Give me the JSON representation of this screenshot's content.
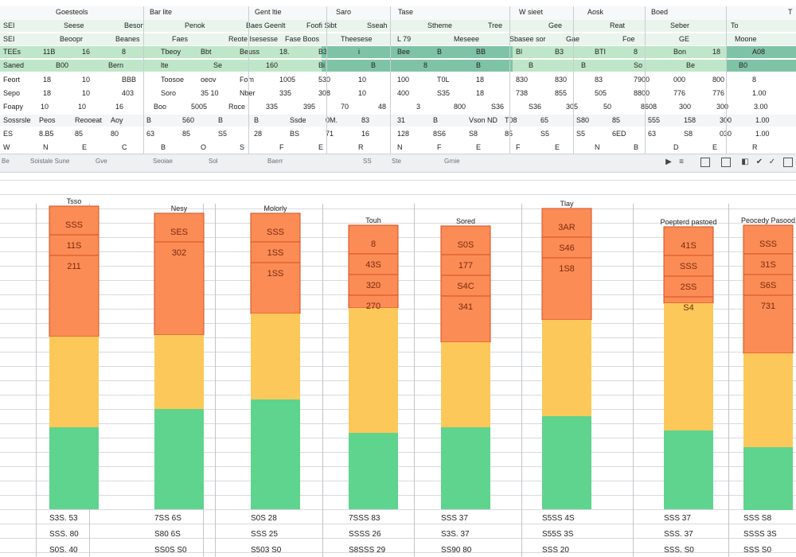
{
  "ribbon": {
    "header": [
      {
        "t": "Goesteols"
      },
      {
        "t": "Bar lite"
      },
      {
        "t": "Gent ltie"
      },
      {
        "t": "Saro"
      },
      {
        "t": "Tase"
      },
      {
        "t": "W sieet"
      },
      {
        "t": "Aosk"
      },
      {
        "t": "Boed"
      },
      {
        "t": "T"
      }
    ],
    "rows": [
      [
        {
          "t": "SEI"
        },
        {
          "t": "Seese"
        },
        {
          "t": "Beson"
        },
        {
          "t": "Penok"
        },
        {
          "t": "Baes Geenlt"
        },
        {
          "t": "Foofi Sibt"
        },
        {
          "t": "Sseah"
        },
        {
          "t": "Stheme"
        },
        {
          "t": "Tree"
        },
        {
          "t": "Gee"
        },
        {
          "t": "Reat"
        },
        {
          "t": "Seber"
        },
        {
          "t": "To"
        }
      ],
      [
        {
          "t": "SEI"
        },
        {
          "t": "Beoopr"
        },
        {
          "t": "Beanes"
        },
        {
          "t": "Faes"
        },
        {
          "t": "Reote Isesesse"
        },
        {
          "t": "Fase Boos"
        },
        {
          "t": "Theesese"
        },
        {
          "t": "L 79"
        },
        {
          "t": "Meseee"
        },
        {
          "t": "Sbasee sor"
        },
        {
          "t": "Gae"
        },
        {
          "t": "Foe"
        },
        {
          "t": "GE"
        },
        {
          "t": "Moone"
        }
      ],
      [
        {
          "t": "TEEs"
        },
        {
          "t": "11B"
        },
        {
          "t": "16"
        },
        {
          "t": "8"
        },
        {
          "t": "Tbeoy"
        },
        {
          "t": "Bbt"
        },
        {
          "t": "Beuss"
        },
        {
          "t": "18."
        },
        {
          "t": "B3"
        },
        {
          "t": "i"
        },
        {
          "t": "Bee"
        },
        {
          "t": "B"
        },
        {
          "t": "BB"
        },
        {
          "t": "Bl"
        },
        {
          "t": "B3"
        },
        {
          "t": "BTI"
        },
        {
          "t": "8"
        },
        {
          "t": "Bon"
        },
        {
          "t": "18"
        },
        {
          "t": "A08"
        }
      ],
      [
        {
          "t": "Saned"
        },
        {
          "t": "B00"
        },
        {
          "t": "Bern"
        },
        {
          "t": "lte"
        },
        {
          "t": "Se"
        },
        {
          "t": "160"
        },
        {
          "t": "Bi"
        },
        {
          "t": "B"
        },
        {
          "t": "8"
        },
        {
          "t": "B"
        },
        {
          "t": "B"
        },
        {
          "t": "B"
        },
        {
          "t": "So"
        },
        {
          "t": "Be"
        },
        {
          "t": "B0"
        }
      ],
      [
        {
          "t": "Feort"
        },
        {
          "t": "18"
        },
        {
          "t": "10"
        },
        {
          "t": "BBB"
        },
        {
          "t": "Toosoe"
        },
        {
          "t": "oeov"
        },
        {
          "t": "Fom"
        },
        {
          "t": "1005"
        },
        {
          "t": "530"
        },
        {
          "t": "10"
        },
        {
          "t": "100"
        },
        {
          "t": "T0L"
        },
        {
          "t": "18"
        },
        {
          "t": "830"
        },
        {
          "t": "830"
        },
        {
          "t": "83"
        },
        {
          "t": "7900"
        },
        {
          "t": "000"
        },
        {
          "t": "800"
        },
        {
          "t": "8"
        }
      ],
      [
        {
          "t": "Sepo"
        },
        {
          "t": "18"
        },
        {
          "t": "10"
        },
        {
          "t": "403"
        },
        {
          "t": "Soro"
        },
        {
          "t": "35 10"
        },
        {
          "t": "Nber"
        },
        {
          "t": "335"
        },
        {
          "t": "308"
        },
        {
          "t": "10"
        },
        {
          "t": "400"
        },
        {
          "t": "S35"
        },
        {
          "t": "18"
        },
        {
          "t": "738"
        },
        {
          "t": "855"
        },
        {
          "t": "505"
        },
        {
          "t": "8800"
        },
        {
          "t": "776"
        },
        {
          "t": "776"
        },
        {
          "t": "1.00"
        }
      ],
      [
        {
          "t": "Foapy"
        },
        {
          "t": "10"
        },
        {
          "t": "10"
        },
        {
          "t": "16"
        },
        {
          "t": "Boo"
        },
        {
          "t": "5005"
        },
        {
          "t": "Roce"
        },
        {
          "t": "335"
        },
        {
          "t": "395"
        },
        {
          "t": "70"
        },
        {
          "t": "48"
        },
        {
          "t": "3"
        },
        {
          "t": "800"
        },
        {
          "t": "S36"
        },
        {
          "t": "S36"
        },
        {
          "t": "305"
        },
        {
          "t": "50"
        },
        {
          "t": "8608"
        },
        {
          "t": "300"
        },
        {
          "t": "300"
        },
        {
          "t": "3.00"
        }
      ],
      [
        {
          "t": "Sossrsle"
        },
        {
          "t": "Peos"
        },
        {
          "t": "Reooeat"
        },
        {
          "t": "Aoy"
        },
        {
          "t": "B"
        },
        {
          "t": "560"
        },
        {
          "t": "B"
        },
        {
          "t": "B"
        },
        {
          "t": "Ssde"
        },
        {
          "t": "0M."
        },
        {
          "t": "83"
        },
        {
          "t": "31"
        },
        {
          "t": "B"
        },
        {
          "t": "Vson ND"
        },
        {
          "t": "T08"
        },
        {
          "t": "65"
        },
        {
          "t": "S80"
        },
        {
          "t": "85"
        },
        {
          "t": "555"
        },
        {
          "t": "158"
        },
        {
          "t": "300"
        },
        {
          "t": "1.00"
        }
      ],
      [
        {
          "t": "ES"
        },
        {
          "t": "8.B5"
        },
        {
          "t": "85"
        },
        {
          "t": "80"
        },
        {
          "t": "63"
        },
        {
          "t": "85"
        },
        {
          "t": "S5"
        },
        {
          "t": "28"
        },
        {
          "t": "BS"
        },
        {
          "t": "71"
        },
        {
          "t": "16"
        },
        {
          "t": "128"
        },
        {
          "t": "8S6"
        },
        {
          "t": "S8"
        },
        {
          "t": "85"
        },
        {
          "t": "S5"
        },
        {
          "t": "S5"
        },
        {
          "t": "6ED"
        },
        {
          "t": "63"
        },
        {
          "t": "S8"
        },
        {
          "t": "030"
        },
        {
          "t": "1.00"
        }
      ],
      [
        {
          "t": "W"
        },
        {
          "t": "N"
        },
        {
          "t": "E"
        },
        {
          "t": "C"
        },
        {
          "t": "B"
        },
        {
          "t": "O"
        },
        {
          "t": "S"
        },
        {
          "t": "F"
        },
        {
          "t": "E"
        },
        {
          "t": "R"
        },
        {
          "t": "N"
        },
        {
          "t": "F"
        },
        {
          "t": "E"
        },
        {
          "t": "F"
        },
        {
          "t": "E"
        },
        {
          "t": "N"
        },
        {
          "t": "B"
        },
        {
          "t": "D"
        },
        {
          "t": "E"
        },
        {
          "t": "R"
        }
      ]
    ]
  },
  "status": [
    {
      "t": "Be"
    },
    {
      "t": "Soistale Sune"
    },
    {
      "t": "Gve"
    },
    {
      "t": "Seoiae"
    },
    {
      "t": "Sol"
    },
    {
      "t": "Baerr"
    },
    {
      "t": "SS"
    },
    {
      "t": "Ste"
    },
    {
      "t": "Grnie"
    }
  ],
  "colors": {
    "ribbon_white": "#f7f8f9",
    "ribbon_light": "#e9f5ec",
    "ribbon_green": "#bfe6c9",
    "ribbon_dark": "#7fc3a6",
    "grid": "#c9ced3",
    "orange": "#fb8c55",
    "yellow": "#fcc859",
    "green": "#5ed48e",
    "bar_border": "#d64e22"
  },
  "chart_data": {
    "type": "bar",
    "stacked": true,
    "grid": true,
    "gridlines": "horizontal",
    "categories": [
      "Tsso",
      "Nesy",
      "Molorly",
      "Touh",
      "Sored",
      "Tlay",
      "Poepterd pastoed",
      "Peocedy Pasood"
    ],
    "segments": [
      {
        "values": [
          0.43,
          0.41,
          0.34,
          0.29,
          0.41,
          0.37,
          0.27,
          0.45
        ]
      },
      {
        "values": [
          0.3,
          0.25,
          0.29,
          0.44,
          0.3,
          0.32,
          0.45,
          0.33
        ]
      },
      {
        "values": [
          0.27,
          0.34,
          0.37,
          0.27,
          0.29,
          0.31,
          0.28,
          0.22
        ]
      }
    ],
    "labels": [
      [
        "SSS",
        "11S",
        "211"
      ],
      [
        "SES",
        "302"
      ],
      [
        "SSS",
        "1SS",
        "1SS"
      ],
      [
        "8",
        "43S",
        "320",
        "270"
      ],
      [
        "S0S",
        "177",
        "S4C",
        "341"
      ],
      [
        "3AR",
        "S46",
        "1S8"
      ],
      [
        "41S",
        "SSS",
        "2SS",
        "S4"
      ],
      [
        "SSS",
        "31S",
        "S6S",
        "731"
      ]
    ],
    "bottom_labels": [
      [
        "S3S. 53",
        "SSS. 80",
        "S0S. 40"
      ],
      [
        "7SS 6S",
        "S80 6S",
        "SS0S S0"
      ],
      [
        "S0S 28",
        "SSS 25",
        "S503 S0"
      ],
      [
        "7SSS 83",
        "SSSS 26",
        "S8SSS 29"
      ],
      [
        "SSS 37",
        "S3S. 37",
        "SS90 80"
      ],
      [
        "S5SS 4S",
        "S55S 3S",
        "SSS 20"
      ],
      [
        "SSS 37",
        "SSS. 37",
        "SSS. S0"
      ],
      [
        "SSS S8",
        "SSSS 3S",
        "SSS S0"
      ]
    ]
  }
}
